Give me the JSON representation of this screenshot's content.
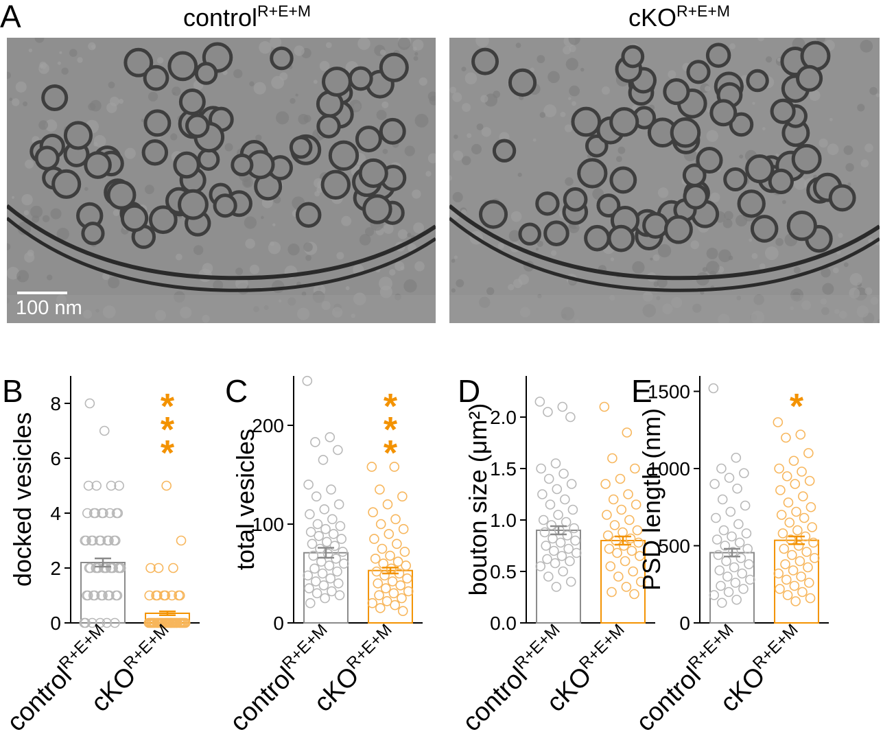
{
  "panel_a": {
    "label": "A",
    "images": [
      {
        "title": "control",
        "superscript": "R+E+M"
      },
      {
        "title": "cKO",
        "superscript": "R+E+M"
      }
    ],
    "scale_bar": "100 nm"
  },
  "chart_data": [
    {
      "type": "bar",
      "label": "B",
      "ylabel": "docked vesicles",
      "categories": [
        "control",
        "cKO"
      ],
      "category_superscripts": [
        "R+E+M",
        "R+E+M"
      ],
      "values": [
        2.2,
        0.35
      ],
      "errors": [
        0.15,
        0.07
      ],
      "colors": [
        "#8a8a8a",
        "#f39200"
      ],
      "points": [
        [
          0,
          0,
          0,
          0,
          0,
          0,
          1,
          1,
          1,
          1,
          1,
          1,
          1,
          1,
          1,
          1,
          2,
          2,
          2,
          2,
          2,
          2,
          2,
          2,
          2,
          2,
          2,
          2,
          2,
          2,
          3,
          3,
          3,
          3,
          3,
          3,
          3,
          3,
          3,
          3,
          4,
          4,
          4,
          4,
          4,
          4,
          4,
          4,
          5,
          5,
          5,
          5,
          7,
          8
        ],
        [
          0,
          0,
          0,
          0,
          0,
          0,
          0,
          0,
          0,
          0,
          0,
          0,
          0,
          0,
          0,
          0,
          0,
          0,
          0,
          0,
          0,
          0,
          0,
          0,
          0,
          0,
          0,
          0,
          0,
          0,
          1,
          1,
          1,
          1,
          1,
          1,
          1,
          1,
          2,
          2,
          2,
          3,
          5
        ]
      ],
      "annotation": "***",
      "ylim": [
        0,
        9
      ],
      "yticks": [
        0,
        2,
        4,
        6,
        8
      ]
    },
    {
      "type": "bar",
      "label": "C",
      "ylabel": "total vesicles",
      "categories": [
        "control",
        "cKO"
      ],
      "category_superscripts": [
        "R+E+M",
        "R+E+M"
      ],
      "values": [
        71,
        53
      ],
      "errors": [
        5,
        3
      ],
      "colors": [
        "#8a8a8a",
        "#f39200"
      ],
      "points": [
        [
          245,
          188,
          183,
          175,
          165,
          140,
          135,
          128,
          120,
          115,
          110,
          105,
          100,
          98,
          95,
          92,
          90,
          88,
          85,
          82,
          80,
          78,
          75,
          72,
          70,
          68,
          65,
          62,
          60,
          58,
          55,
          52,
          50,
          48,
          45,
          42,
          40,
          38,
          35,
          32,
          30,
          28,
          25,
          20
        ],
        [
          158,
          158,
          135,
          128,
          120,
          112,
          105,
          100,
          95,
          90,
          85,
          80,
          75,
          72,
          68,
          65,
          62,
          60,
          58,
          55,
          52,
          50,
          48,
          45,
          42,
          40,
          38,
          35,
          32,
          30,
          28,
          25,
          22,
          20,
          18,
          15,
          12
        ]
      ],
      "annotation": "***",
      "ylim": [
        0,
        250
      ],
      "yticks": [
        0,
        100,
        200
      ]
    },
    {
      "type": "bar",
      "label": "D",
      "ylabel": "bouton size (μm²)",
      "categories": [
        "control",
        "cKO"
      ],
      "category_superscripts": [
        "R+E+M",
        "R+E+M"
      ],
      "values": [
        0.9,
        0.8
      ],
      "errors": [
        0.04,
        0.04
      ],
      "colors": [
        "#8a8a8a",
        "#f39200"
      ],
      "points": [
        [
          2.15,
          2.1,
          2.05,
          2.0,
          1.55,
          1.5,
          1.45,
          1.4,
          1.35,
          1.3,
          1.25,
          1.2,
          1.15,
          1.1,
          1.05,
          1.0,
          0.98,
          0.95,
          0.92,
          0.9,
          0.88,
          0.85,
          0.82,
          0.8,
          0.78,
          0.75,
          0.72,
          0.7,
          0.68,
          0.65,
          0.62,
          0.6,
          0.58,
          0.55,
          0.5,
          0.45,
          0.4,
          0.35
        ],
        [
          2.1,
          1.85,
          1.6,
          1.5,
          1.4,
          1.35,
          1.25,
          1.2,
          1.15,
          1.1,
          1.05,
          1.0,
          0.95,
          0.9,
          0.88,
          0.85,
          0.82,
          0.8,
          0.78,
          0.75,
          0.72,
          0.7,
          0.68,
          0.65,
          0.6,
          0.55,
          0.5,
          0.45,
          0.4,
          0.35,
          0.3,
          0.28
        ]
      ],
      "ylim": [
        0,
        2.4
      ],
      "yticks": [
        {
          "value": 0,
          "label": "0.0"
        },
        0.5,
        {
          "value": 1,
          "label": "1.0"
        },
        1.5,
        {
          "value": 2,
          "label": "2.0"
        }
      ]
    },
    {
      "type": "bar",
      "label": "E",
      "ylabel": "PSD length (nm)",
      "categories": [
        "control",
        "cKO"
      ],
      "category_superscripts": [
        "R+E+M",
        "R+E+M"
      ],
      "values": [
        455,
        535
      ],
      "errors": [
        25,
        25
      ],
      "colors": [
        "#8a8a8a",
        "#f39200"
      ],
      "points": [
        [
          1520,
          1070,
          1000,
          970,
          940,
          900,
          870,
          800,
          760,
          720,
          680,
          640,
          600,
          580,
          560,
          540,
          520,
          500,
          480,
          460,
          440,
          420,
          400,
          380,
          360,
          340,
          320,
          300,
          280,
          260,
          240,
          220,
          200,
          180,
          150,
          130
        ],
        [
          1300,
          1220,
          1200,
          1100,
          1050,
          1000,
          980,
          950,
          920,
          900,
          860,
          820,
          780,
          750,
          720,
          700,
          680,
          650,
          620,
          600,
          580,
          560,
          540,
          520,
          500,
          480,
          460,
          440,
          420,
          400,
          380,
          360,
          340,
          320,
          300,
          280,
          260,
          240,
          220,
          200,
          180,
          160,
          140
        ]
      ],
      "annotation": "*",
      "ylim": [
        0,
        1600
      ],
      "yticks": [
        0,
        500,
        1000,
        1500
      ]
    }
  ]
}
